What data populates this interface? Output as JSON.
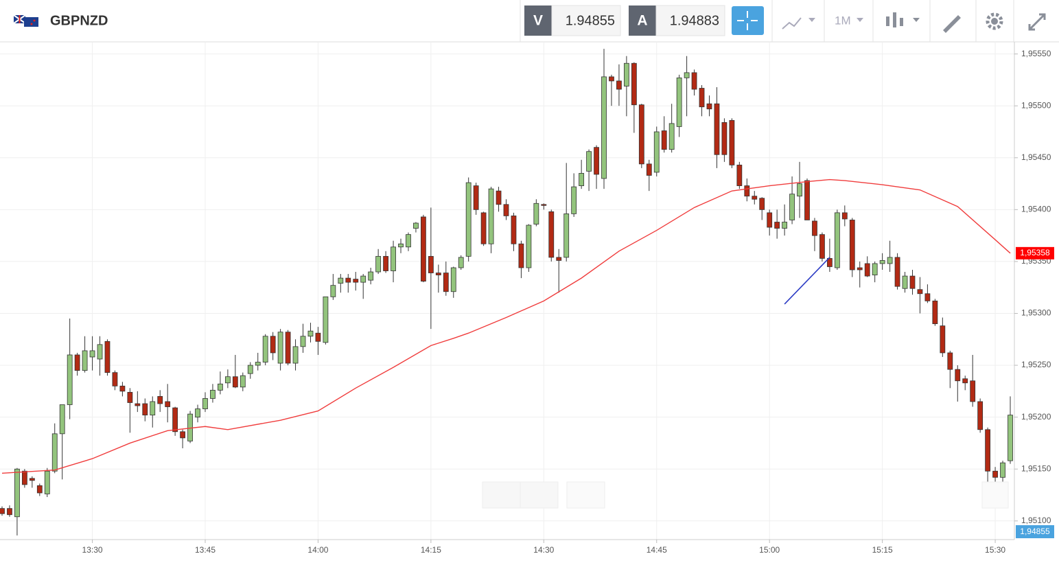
{
  "toolbar": {
    "symbol": "GBPNZD",
    "bid_label": "V",
    "bid": "1.94855",
    "ask_label": "A",
    "ask": "1.94883",
    "timeframe": "1M"
  },
  "chart_data": {
    "type": "candlestick",
    "x": [
      "13:18",
      "13:19",
      "13:20",
      "13:21",
      "13:22",
      "13:23",
      "13:24",
      "13:25",
      "13:26",
      "13:27",
      "13:28",
      "13:29",
      "13:30",
      "13:31",
      "13:32",
      "13:33",
      "13:34",
      "13:35",
      "13:36",
      "13:37",
      "13:38",
      "13:39",
      "13:40",
      "13:41",
      "13:42",
      "13:43",
      "13:44",
      "13:45",
      "13:46",
      "13:47",
      "13:48",
      "13:49",
      "13:50",
      "13:51",
      "13:52",
      "13:53",
      "13:54",
      "13:55",
      "13:56",
      "13:57",
      "13:58",
      "13:59",
      "14:00",
      "14:01",
      "14:02",
      "14:03",
      "14:04",
      "14:05",
      "14:06",
      "14:07",
      "14:08",
      "14:09",
      "14:10",
      "14:11",
      "14:12",
      "14:13",
      "14:14",
      "14:15",
      "14:16",
      "14:17",
      "14:18",
      "14:19",
      "14:20",
      "14:21",
      "14:22",
      "14:23",
      "14:24",
      "14:25",
      "14:26",
      "14:27",
      "14:28",
      "14:29",
      "14:30",
      "14:31",
      "14:32",
      "14:33",
      "14:34",
      "14:35",
      "14:36",
      "14:37",
      "14:38",
      "14:39",
      "14:40",
      "14:41",
      "14:42",
      "14:43",
      "14:44",
      "14:45",
      "14:46",
      "14:47",
      "14:48",
      "14:49",
      "14:50",
      "14:51",
      "14:52",
      "14:53",
      "14:54",
      "14:55",
      "14:56",
      "14:57",
      "14:58",
      "14:59",
      "15:00",
      "15:01",
      "15:02",
      "15:03",
      "15:04",
      "15:05",
      "15:06",
      "15:07",
      "15:08",
      "15:09",
      "15:10",
      "15:11",
      "15:12",
      "15:13",
      "15:14",
      "15:15",
      "15:16",
      "15:17",
      "15:18",
      "15:19",
      "15:20",
      "15:21",
      "15:22",
      "15:23",
      "15:24",
      "15:25",
      "15:26",
      "15:27",
      "15:28",
      "15:29",
      "15:30",
      "15:31",
      "15:32"
    ],
    "open": [
      1.95112,
      1.95112,
      1.95104,
      1.95148,
      1.95141,
      1.95134,
      1.95126,
      1.95148,
      1.95184,
      1.95212,
      1.9526,
      1.95245,
      1.95258,
      1.95256,
      1.95273,
      1.95243,
      1.9523,
      1.95224,
      1.95213,
      1.95213,
      1.95202,
      1.9522,
      1.95215,
      1.95209,
      1.95186,
      1.95177,
      1.952,
      1.95208,
      1.95218,
      1.95226,
      1.95233,
      1.95239,
      1.95229,
      1.95242,
      1.9525,
      1.95253,
      1.95278,
      1.95252,
      1.95282,
      1.95252,
      1.95268,
      1.95278,
      1.95281,
      1.95272,
      1.95316,
      1.95329,
      1.95334,
      1.95333,
      1.9533,
      1.95332,
      1.9534,
      1.95355,
      1.95341,
      1.95364,
      1.95364,
      1.95382,
      1.95393,
      1.95355,
      1.95339,
      1.95339,
      1.95321,
      1.95344,
      1.95355,
      1.95423,
      1.95397,
      1.95367,
      1.95418,
      1.95405,
      1.95394,
      1.95367,
      1.95344,
      1.95386,
      1.95405,
      1.95398,
      1.95354,
      1.95354,
      1.95396,
      1.95423,
      1.95437,
      1.9546,
      1.9543,
      1.95528,
      1.95524,
      1.95519,
      1.95541,
      1.95501,
      1.95444,
      1.95436,
      1.95476,
      1.95458,
      1.9548,
      1.95527,
      1.95532,
      1.95517,
      1.95502,
      1.95502,
      1.95484,
      1.95486,
      1.95443,
      1.95423,
      1.95413,
      1.95411,
      1.95397,
      1.95388,
      1.95382,
      1.9539,
      1.95413,
      1.95428,
      1.95389,
      1.95376,
      1.95353,
      1.95344,
      1.95397,
      1.9539,
      1.95344,
      1.95348,
      1.95337,
      1.95348,
      1.95348,
      1.95354,
      1.95324,
      1.95336,
      1.95323,
      1.95319,
      1.95312,
      1.95288,
      1.95262,
      1.95246,
      1.95237,
      1.95235,
      1.95215,
      1.95188,
      1.95148,
      1.95142,
      1.95158
    ],
    "high": [
      1.95114,
      1.95115,
      1.95151,
      1.9515,
      1.95143,
      1.95136,
      1.95151,
      1.95194,
      1.95212,
      1.95295,
      1.95262,
      1.95278,
      1.95278,
      1.95278,
      1.95275,
      1.95245,
      1.95234,
      1.95228,
      1.95225,
      1.95218,
      1.9522,
      1.95226,
      1.95232,
      1.9521,
      1.95188,
      1.95206,
      1.95212,
      1.95224,
      1.95232,
      1.95244,
      1.95246,
      1.9526,
      1.95243,
      1.95253,
      1.95262,
      1.9528,
      1.95282,
      1.95285,
      1.95284,
      1.95275,
      1.9529,
      1.95291,
      1.95287,
      1.95316,
      1.95338,
      1.95338,
      1.95338,
      1.9534,
      1.95338,
      1.95344,
      1.95362,
      1.9536,
      1.9537,
      1.95372,
      1.95378,
      1.95388,
      1.95395,
      1.95402,
      1.95347,
      1.9535,
      1.95345,
      1.95356,
      1.95431,
      1.95426,
      1.95398,
      1.95422,
      1.95422,
      1.9541,
      1.95397,
      1.9537,
      1.95386,
      1.9541,
      1.95406,
      1.954,
      1.95362,
      1.95445,
      1.95435,
      1.95448,
      1.95458,
      1.95462,
      1.95555,
      1.9553,
      1.9554,
      1.95548,
      1.95542,
      1.95502,
      1.95448,
      1.9548,
      1.9549,
      1.95502,
      1.9553,
      1.95548,
      1.95535,
      1.9552,
      1.9551,
      1.95518,
      1.95488,
      1.95488,
      1.95446,
      1.9543,
      1.95418,
      1.95412,
      1.954,
      1.954,
      1.95405,
      1.95432,
      1.95446,
      1.9543,
      1.95392,
      1.95378,
      1.95372,
      1.954,
      1.95404,
      1.95392,
      1.9535,
      1.95355,
      1.9535,
      1.95358,
      1.9537,
      1.95358,
      1.9534,
      1.95342,
      1.95335,
      1.95328,
      1.95314,
      1.95296,
      1.95264,
      1.9525,
      1.9524,
      1.9526,
      1.95218,
      1.9519,
      1.95152,
      1.95158,
      1.9522
    ],
    "low": [
      1.95105,
      1.95104,
      1.95086,
      1.95132,
      1.95132,
      1.95124,
      1.95123,
      1.95146,
      1.9514,
      1.95198,
      1.9524,
      1.95243,
      1.95245,
      1.9524,
      1.9524,
      1.95226,
      1.9522,
      1.95185,
      1.95205,
      1.95196,
      1.9519,
      1.95205,
      1.95195,
      1.95182,
      1.9517,
      1.95175,
      1.95195,
      1.95205,
      1.95214,
      1.95222,
      1.95228,
      1.95228,
      1.95225,
      1.95237,
      1.95245,
      1.9525,
      1.95255,
      1.95245,
      1.9525,
      1.95245,
      1.95262,
      1.95272,
      1.9526,
      1.9527,
      1.95313,
      1.9532,
      1.9532,
      1.95322,
      1.95314,
      1.95328,
      1.95338,
      1.95339,
      1.9533,
      1.95358,
      1.9536,
      1.95378,
      1.9533,
      1.95285,
      1.9532,
      1.95317,
      1.95315,
      1.95342,
      1.9535,
      1.95395,
      1.95365,
      1.95358,
      1.95398,
      1.9539,
      1.9536,
      1.95334,
      1.9534,
      1.95384,
      1.954,
      1.9535,
      1.9532,
      1.9535,
      1.95393,
      1.9542,
      1.95418,
      1.9542,
      1.9542,
      1.955,
      1.955,
      1.9549,
      1.95474,
      1.9544,
      1.95418,
      1.95432,
      1.95455,
      1.95455,
      1.9547,
      1.9549,
      1.9551,
      1.9549,
      1.9549,
      1.9544,
      1.95446,
      1.9544,
      1.9542,
      1.95408,
      1.95405,
      1.9539,
      1.95375,
      1.95372,
      1.95375,
      1.95386,
      1.95392,
      1.9539,
      1.9536,
      1.9535,
      1.9534,
      1.95342,
      1.95384,
      1.95335,
      1.95325,
      1.95335,
      1.9533,
      1.95342,
      1.9534,
      1.95323,
      1.9532,
      1.95318,
      1.953,
      1.9531,
      1.95288,
      1.95258,
      1.95228,
      1.95215,
      1.95226,
      1.9521,
      1.95185,
      1.95137,
      1.95136,
      1.95133,
      1.95155
    ],
    "close": [
      1.95107,
      1.95106,
      1.9515,
      1.95135,
      1.95139,
      1.95127,
      1.95148,
      1.95184,
      1.95212,
      1.9526,
      1.95245,
      1.95264,
      1.95264,
      1.9527,
      1.95243,
      1.9523,
      1.95225,
      1.95214,
      1.95211,
      1.95202,
      1.95215,
      1.95213,
      1.9521,
      1.95186,
      1.9518,
      1.95203,
      1.95208,
      1.95218,
      1.95226,
      1.95232,
      1.95239,
      1.95229,
      1.9524,
      1.9525,
      1.95253,
      1.95278,
      1.95262,
      1.95282,
      1.95252,
      1.95268,
      1.95278,
      1.95283,
      1.95273,
      1.95316,
      1.95327,
      1.95334,
      1.9533,
      1.9533,
      1.95336,
      1.9534,
      1.95355,
      1.95341,
      1.95364,
      1.95367,
      1.95376,
      1.95387,
      1.95331,
      1.95339,
      1.95337,
      1.95321,
      1.95344,
      1.95354,
      1.95426,
      1.954,
      1.95367,
      1.9542,
      1.95405,
      1.95394,
      1.95367,
      1.95344,
      1.95385,
      1.95406,
      1.95404,
      1.95354,
      1.95351,
      1.95396,
      1.95422,
      1.95435,
      1.95456,
      1.95434,
      1.95528,
      1.95524,
      1.95516,
      1.95541,
      1.95501,
      1.95444,
      1.95433,
      1.95475,
      1.95458,
      1.95483,
      1.95527,
      1.95532,
      1.95516,
      1.95499,
      1.95497,
      1.95453,
      1.95453,
      1.95443,
      1.95423,
      1.95413,
      1.9541,
      1.954,
      1.95383,
      1.95382,
      1.95388,
      1.95415,
      1.95425,
      1.9539,
      1.95375,
      1.95353,
      1.95345,
      1.95397,
      1.95391,
      1.95342,
      1.95342,
      1.95336,
      1.95348,
      1.95351,
      1.95354,
      1.95326,
      1.95336,
      1.95324,
      1.95319,
      1.95312,
      1.9529,
      1.95262,
      1.95246,
      1.95235,
      1.95233,
      1.95215,
      1.95188,
      1.95148,
      1.95142,
      1.95156,
      1.95202
    ],
    "up_color": "#93c47d",
    "down_color": "#b22a14",
    "xlim": [
      "13:18",
      "15:32"
    ],
    "xticks": [
      "13:30",
      "13:45",
      "14:00",
      "14:15",
      "14:30",
      "14:45",
      "15:00",
      "15:15",
      "15:30"
    ],
    "ylim": [
      1.95082,
      1.95561
    ],
    "yticks": [
      {
        "value": 1.951,
        "label": "1,95100"
      },
      {
        "value": 1.9515,
        "label": "1,95150"
      },
      {
        "value": 1.952,
        "label": "1,95200"
      },
      {
        "value": 1.9525,
        "label": "1,95250"
      },
      {
        "value": 1.953,
        "label": "1,95300"
      },
      {
        "value": 1.9535,
        "label": "1,95350"
      },
      {
        "value": 1.954,
        "label": "1,95400"
      },
      {
        "value": 1.9545,
        "label": "1,95450"
      },
      {
        "value": 1.955,
        "label": "1,95500"
      },
      {
        "value": 1.9555,
        "label": "1,95550"
      }
    ],
    "grid": true,
    "ma": {
      "color": "#f03c3c",
      "x": [
        "13:18",
        "13:25",
        "13:30",
        "13:35",
        "13:40",
        "13:45",
        "13:48",
        "13:55",
        "14:00",
        "14:05",
        "14:10",
        "14:15",
        "14:18",
        "14:20",
        "14:25",
        "14:30",
        "14:35",
        "14:40",
        "14:45",
        "14:50",
        "14:55",
        "15:00",
        "15:05",
        "15:08",
        "15:10",
        "15:15",
        "15:20",
        "15:25",
        "15:30",
        "15:32"
      ],
      "values": [
        1.95146,
        1.95149,
        1.9516,
        1.95175,
        1.95187,
        1.95191,
        1.95188,
        1.95197,
        1.95206,
        1.95228,
        1.95248,
        1.95269,
        1.95276,
        1.95281,
        1.95296,
        1.95312,
        1.95334,
        1.9536,
        1.9538,
        1.95402,
        1.95418,
        1.95423,
        1.95427,
        1.95429,
        1.95428,
        1.95424,
        1.95419,
        1.95403,
        1.95371,
        1.95358
      ],
      "last_label": {
        "value": 1.95358,
        "label": "1,95358"
      }
    },
    "drawing": {
      "color": "#2b3bc4",
      "x": [
        "15:02",
        "15:08"
      ],
      "values": [
        1.95309,
        1.95354
      ]
    },
    "bid_tag": "1,94855"
  }
}
